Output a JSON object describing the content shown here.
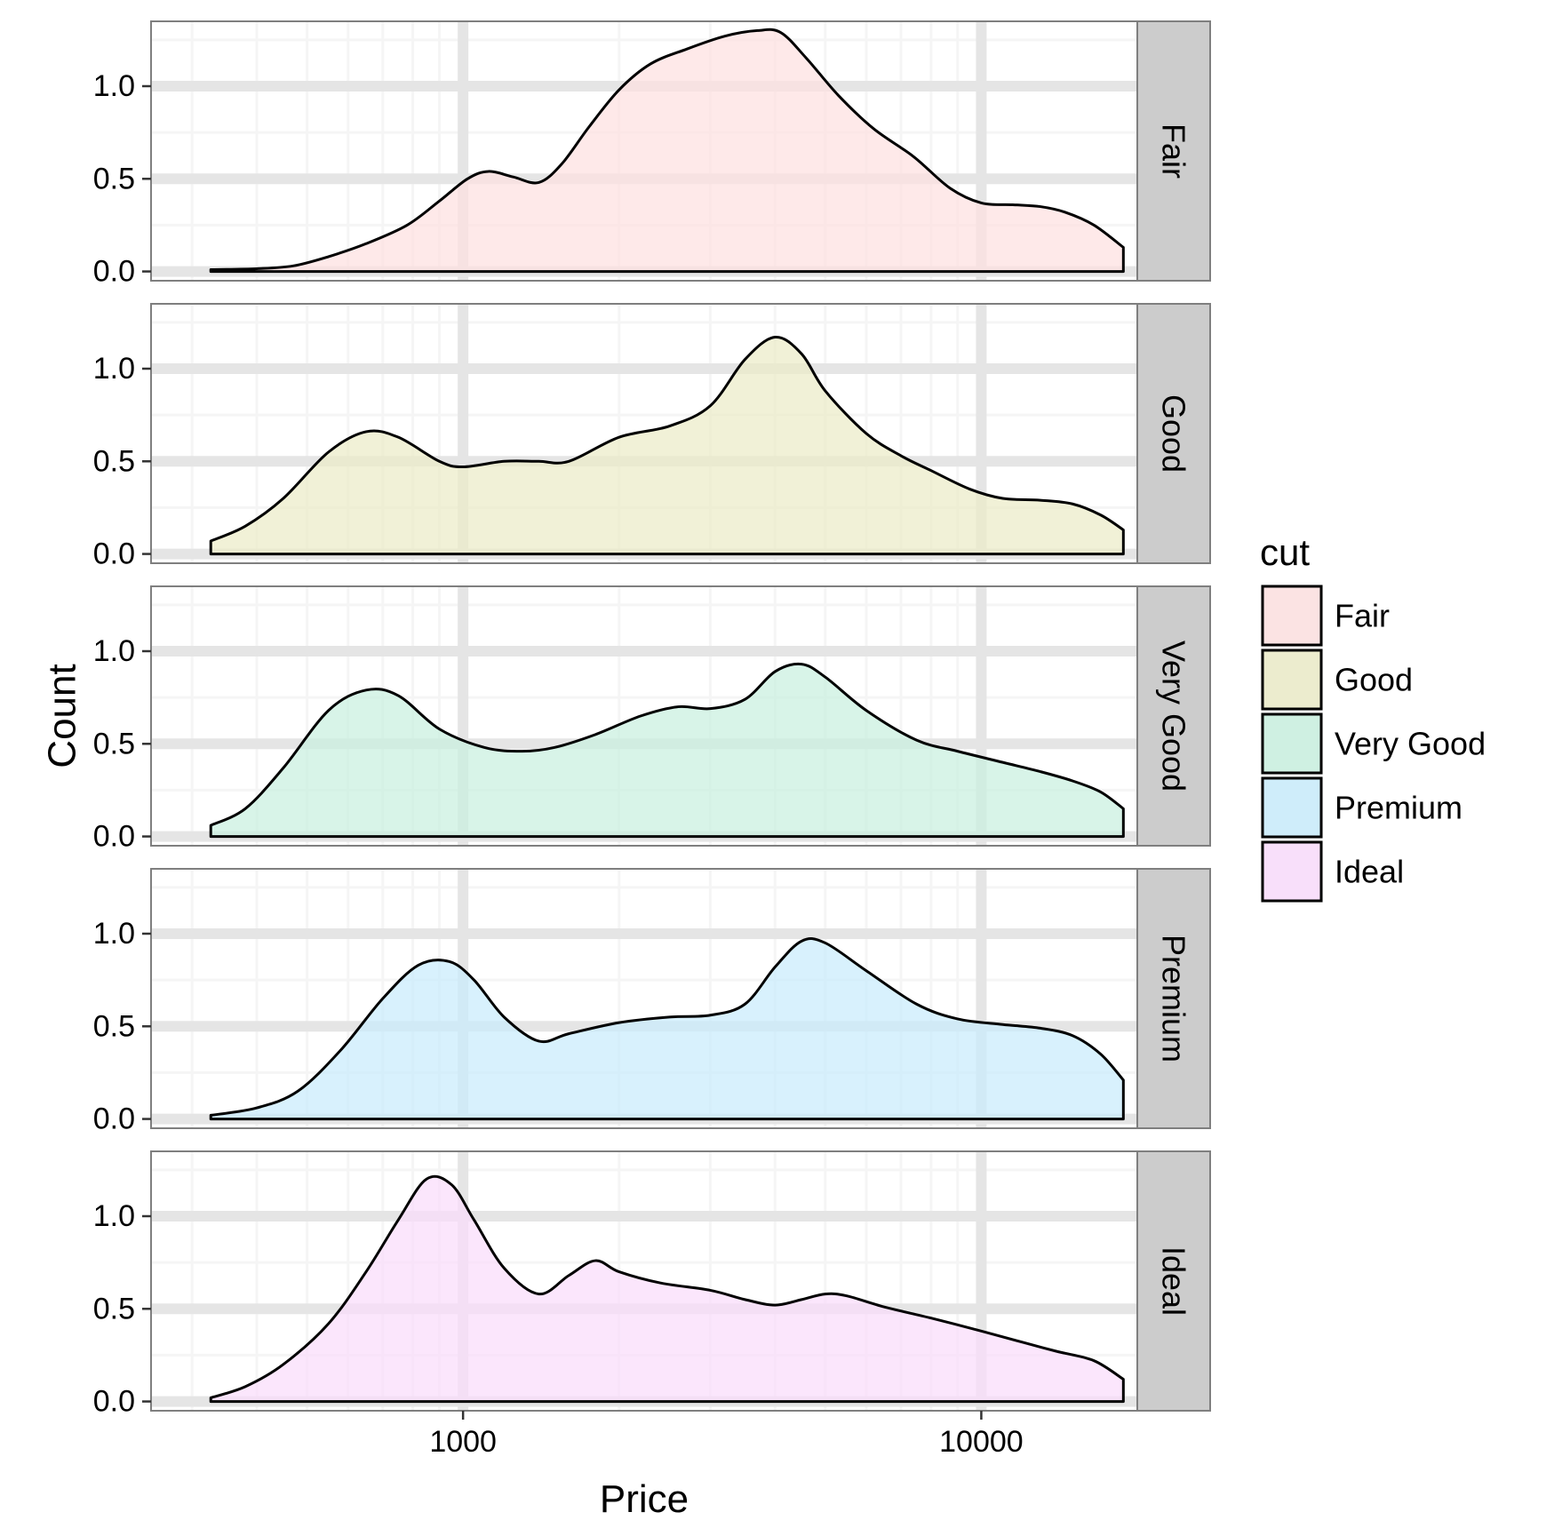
{
  "chart_data": {
    "type": "area",
    "xlabel": "Price",
    "ylabel": "Count",
    "x_scale": "log10",
    "xlim": [
      250,
      20000
    ],
    "ylim": [
      -0.05,
      1.35
    ],
    "x_ticks": [
      1000,
      10000
    ],
    "x_tick_labels": [
      "1000",
      "10000"
    ],
    "y_ticks": [
      0,
      0.5,
      1
    ],
    "y_tick_labels": [
      "0.0",
      "0.5",
      "1.0"
    ],
    "grid": true,
    "legend": {
      "title": "cut",
      "position": "right",
      "entries": [
        "Fair",
        "Good",
        "Very Good",
        "Premium",
        "Ideal"
      ]
    },
    "facets": [
      "Fair",
      "Good",
      "Very Good",
      "Premium",
      "Ideal"
    ],
    "colors": {
      "Fair": "#fde0e1",
      "Good": "#ebebc8",
      "Very Good": "#c9f0df",
      "Premium": "#c9ecfc",
      "Ideal": "#f9dcfb"
    },
    "series": [
      {
        "name": "Fair",
        "x": [
          326,
          400,
          470,
          550,
          650,
          780,
          900,
          1020,
          1120,
          1250,
          1400,
          1550,
          1750,
          2000,
          2300,
          2700,
          3200,
          3700,
          4100,
          4600,
          5300,
          6200,
          7400,
          8700,
          10000,
          11500,
          13000,
          14500,
          16500,
          18800
        ],
        "values": [
          0.01,
          0.015,
          0.03,
          0.08,
          0.15,
          0.25,
          0.38,
          0.5,
          0.54,
          0.51,
          0.48,
          0.58,
          0.78,
          0.98,
          1.12,
          1.2,
          1.27,
          1.3,
          1.29,
          1.15,
          0.95,
          0.77,
          0.62,
          0.45,
          0.37,
          0.36,
          0.35,
          0.32,
          0.25,
          0.13
        ]
      },
      {
        "name": "Good",
        "x": [
          326,
          380,
          450,
          550,
          650,
          750,
          900,
          1000,
          1200,
          1400,
          1600,
          2000,
          2500,
          3000,
          3500,
          4000,
          4500,
          5000,
          6000,
          7000,
          8000,
          9500,
          11000,
          13000,
          15000,
          17000,
          18800
        ],
        "values": [
          0.07,
          0.15,
          0.3,
          0.55,
          0.66,
          0.63,
          0.5,
          0.47,
          0.5,
          0.5,
          0.5,
          0.63,
          0.69,
          0.8,
          1.05,
          1.17,
          1.08,
          0.88,
          0.65,
          0.53,
          0.45,
          0.35,
          0.3,
          0.29,
          0.27,
          0.21,
          0.13
        ]
      },
      {
        "name": "Very Good",
        "x": [
          326,
          380,
          450,
          550,
          650,
          750,
          900,
          1100,
          1300,
          1500,
          1800,
          2200,
          2600,
          3000,
          3500,
          4000,
          4500,
          5000,
          6000,
          7500,
          9000,
          11000,
          13000,
          15000,
          17000,
          18800
        ],
        "values": [
          0.06,
          0.15,
          0.37,
          0.68,
          0.79,
          0.76,
          0.58,
          0.48,
          0.46,
          0.48,
          0.55,
          0.65,
          0.7,
          0.69,
          0.74,
          0.89,
          0.93,
          0.86,
          0.68,
          0.52,
          0.46,
          0.4,
          0.35,
          0.3,
          0.24,
          0.15
        ]
      },
      {
        "name": "Premium",
        "x": [
          326,
          400,
          480,
          580,
          700,
          820,
          940,
          1050,
          1200,
          1400,
          1600,
          2000,
          2500,
          3000,
          3500,
          4000,
          4500,
          5000,
          6000,
          7500,
          9000,
          11000,
          13000,
          15000,
          17000,
          18800
        ],
        "values": [
          0.02,
          0.06,
          0.15,
          0.37,
          0.65,
          0.83,
          0.85,
          0.75,
          0.55,
          0.42,
          0.46,
          0.52,
          0.55,
          0.56,
          0.62,
          0.82,
          0.96,
          0.95,
          0.8,
          0.62,
          0.54,
          0.51,
          0.49,
          0.45,
          0.35,
          0.21
        ]
      },
      {
        "name": "Ideal",
        "x": [
          326,
          380,
          450,
          550,
          650,
          750,
          850,
          950,
          1050,
          1200,
          1400,
          1600,
          1800,
          2000,
          2400,
          3000,
          3500,
          4000,
          4500,
          5000,
          5500,
          6500,
          8000,
          10000,
          12000,
          14000,
          16500,
          18800
        ],
        "values": [
          0.02,
          0.08,
          0.2,
          0.42,
          0.7,
          0.98,
          1.2,
          1.17,
          0.98,
          0.72,
          0.58,
          0.68,
          0.76,
          0.7,
          0.64,
          0.6,
          0.55,
          0.52,
          0.55,
          0.58,
          0.57,
          0.51,
          0.45,
          0.38,
          0.32,
          0.27,
          0.22,
          0.12
        ]
      }
    ]
  }
}
